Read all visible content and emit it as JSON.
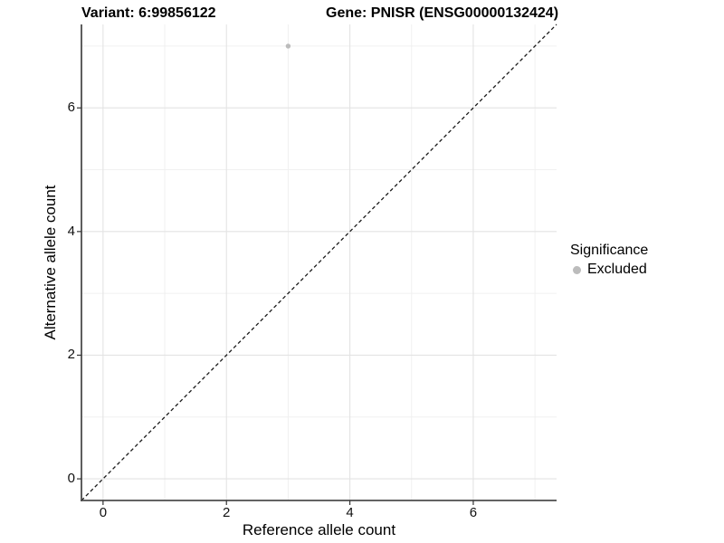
{
  "chart_data": {
    "type": "scatter",
    "titles": [
      "Variant: 6:99856122",
      "Gene: PNISR (ENSG00000132424)"
    ],
    "xlabel": "Reference allele count",
    "ylabel": "Alternative allele count",
    "xlim": [
      -0.35,
      7.35
    ],
    "ylim": [
      -0.35,
      7.35
    ],
    "xticks": [
      0,
      2,
      4,
      6
    ],
    "yticks": [
      0,
      2,
      4,
      6
    ],
    "x_minor_grid": [
      1,
      3,
      5,
      7
    ],
    "y_minor_grid": [
      1,
      3,
      5,
      7
    ],
    "grid": true,
    "points": [
      {
        "x": 3,
        "y": 7,
        "significance": "Excluded",
        "color": "#bcbcbc"
      }
    ],
    "identity_line": {
      "style": "dashed",
      "from": -0.35,
      "to": 7.35,
      "color": "#1a1a1a"
    },
    "legend": {
      "title": "Significance",
      "position": "right",
      "entries": [
        {
          "label": "Excluded",
          "color": "#bcbcbc"
        }
      ]
    }
  },
  "colors": {
    "background": "#ffffff",
    "axis_line": "#4d4d4d",
    "tick_mark": "#333333",
    "grid_major": "#e3e3e3",
    "grid_minor": "#f0f0f0",
    "excluded_point": "#bcbcbc"
  }
}
